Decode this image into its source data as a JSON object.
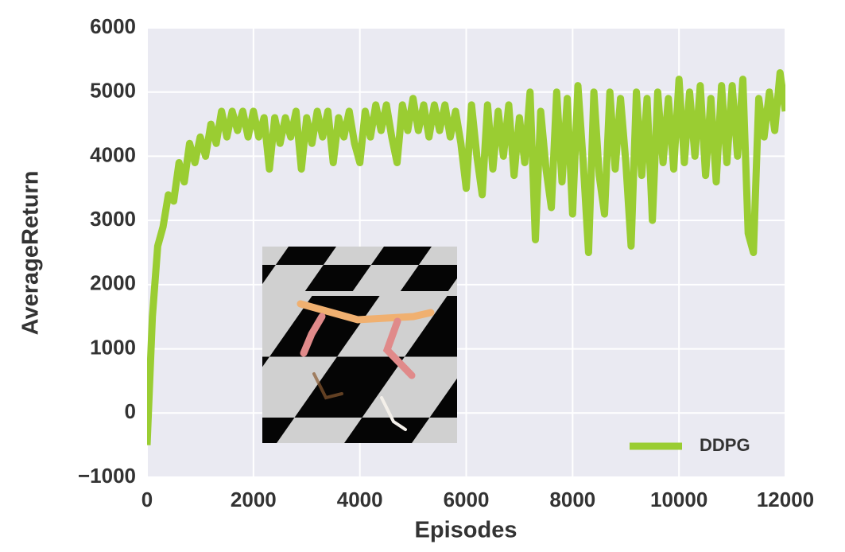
{
  "chart_data": {
    "type": "line",
    "xlabel": "Episodes",
    "ylabel": "AverageReturn",
    "xlim": [
      0,
      12000
    ],
    "ylim": [
      -1000,
      6000
    ],
    "xticks": [
      0,
      2000,
      4000,
      6000,
      8000,
      10000,
      12000
    ],
    "yticks": [
      {
        "value": -1000,
        "label": "−1000"
      },
      0,
      1000,
      2000,
      3000,
      4000,
      5000,
      6000
    ],
    "grid": true,
    "legend": "lower right",
    "x": [
      0,
      100,
      200,
      300,
      400,
      500,
      600,
      700,
      800,
      900,
      1000,
      1100,
      1200,
      1300,
      1400,
      1500,
      1600,
      1700,
      1800,
      1900,
      2000,
      2100,
      2200,
      2300,
      2400,
      2500,
      2600,
      2700,
      2800,
      2900,
      3000,
      3100,
      3200,
      3300,
      3400,
      3500,
      3600,
      3700,
      3800,
      3900,
      4000,
      4100,
      4200,
      4300,
      4400,
      4500,
      4600,
      4700,
      4800,
      4900,
      5000,
      5100,
      5200,
      5300,
      5400,
      5500,
      5600,
      5700,
      5800,
      5900,
      6000,
      6100,
      6200,
      6300,
      6400,
      6500,
      6600,
      6700,
      6800,
      6900,
      7000,
      7100,
      7200,
      7300,
      7400,
      7500,
      7600,
      7700,
      7800,
      7900,
      8000,
      8100,
      8200,
      8300,
      8400,
      8500,
      8600,
      8700,
      8800,
      8900,
      9000,
      9100,
      9200,
      9300,
      9400,
      9500,
      9600,
      9700,
      9800,
      9900,
      10000,
      10100,
      10200,
      10300,
      10400,
      10500,
      10600,
      10700,
      10800,
      10900,
      11000,
      11100,
      11200,
      11300,
      11400,
      11500,
      11600,
      11700,
      11800,
      11900,
      12000
    ],
    "series": [
      {
        "name": "DDPG",
        "color": "#9acd32",
        "values": [
          -500,
          1500,
          2600,
          2900,
          3400,
          3300,
          3900,
          3600,
          4200,
          3900,
          4300,
          4000,
          4500,
          4200,
          4700,
          4300,
          4700,
          4400,
          4700,
          4300,
          4700,
          4300,
          4600,
          3800,
          4600,
          4200,
          4600,
          4300,
          4700,
          3800,
          4600,
          4200,
          4700,
          4300,
          4700,
          3900,
          4600,
          4300,
          4700,
          4200,
          3900,
          4700,
          4300,
          4800,
          4400,
          4800,
          4300,
          3900,
          4800,
          4400,
          4900,
          4400,
          4800,
          4300,
          4800,
          4400,
          4800,
          4300,
          4700,
          4200,
          3500,
          4800,
          4000,
          3400,
          4800,
          3800,
          4700,
          4000,
          4800,
          3700,
          4600,
          3900,
          5000,
          2700,
          4700,
          3800,
          3200,
          5000,
          3600,
          4900,
          3100,
          5100,
          3900,
          2500,
          5000,
          3700,
          3100,
          5000,
          3800,
          4900,
          3900,
          2600,
          5000,
          3700,
          4900,
          3000,
          5000,
          3900,
          4900,
          3800,
          5200,
          3900,
          5000,
          4000,
          5100,
          3700,
          4900,
          3600,
          5100,
          3900,
          5100,
          4000,
          5200,
          2800,
          2500,
          4900,
          4300,
          5000,
          4400,
          5300,
          4700
        ]
      }
    ]
  }
}
